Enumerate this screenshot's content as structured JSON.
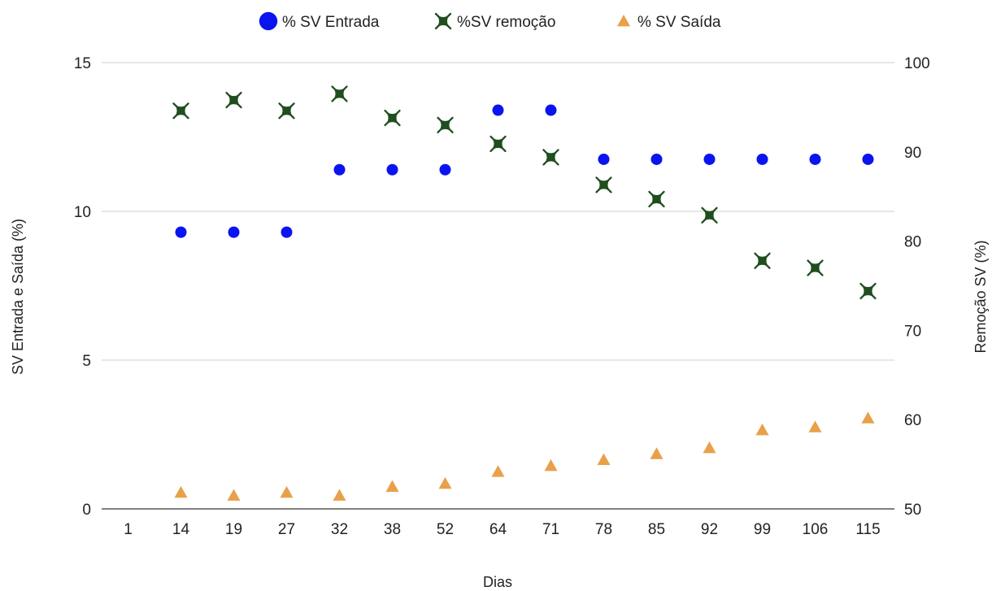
{
  "chart_data": {
    "type": "scatter",
    "xlabel": "Dias",
    "ylabel": "SV Entrada e Saída (%)",
    "y2label": "Remoção SV (%)",
    "categories": [
      "1",
      "14",
      "19",
      "27",
      "32",
      "38",
      "52",
      "64",
      "71",
      "78",
      "85",
      "92",
      "99",
      "106",
      "115"
    ],
    "ylim": [
      0,
      15
    ],
    "yticks": [
      0,
      5,
      10,
      15
    ],
    "y2lim": [
      50,
      100
    ],
    "y2ticks": [
      50,
      60,
      70,
      80,
      90,
      100
    ],
    "grid": true,
    "legend_position": "top",
    "series": [
      {
        "name": "% SV Entrada",
        "axis": "left",
        "marker": "circle",
        "color": "#0a14f0",
        "values": [
          null,
          9.3,
          9.3,
          9.3,
          11.4,
          11.4,
          11.4,
          13.4,
          13.4,
          11.75,
          11.75,
          11.75,
          11.75,
          11.75,
          11.75
        ]
      },
      {
        "name": "%SV remoção",
        "axis": "right",
        "marker": "x",
        "color": "#1f4e1f",
        "values": [
          null,
          94.6,
          95.8,
          94.6,
          96.5,
          93.8,
          93.0,
          90.9,
          89.4,
          86.3,
          84.7,
          82.9,
          77.8,
          77.0,
          74.4
        ]
      },
      {
        "name": "% SV Saída",
        "axis": "left",
        "marker": "triangle",
        "color": "#e8a04a",
        "values": [
          null,
          0.55,
          0.45,
          0.55,
          0.45,
          0.75,
          0.85,
          1.25,
          1.45,
          1.65,
          1.85,
          2.05,
          2.65,
          2.75,
          3.05
        ]
      }
    ]
  }
}
